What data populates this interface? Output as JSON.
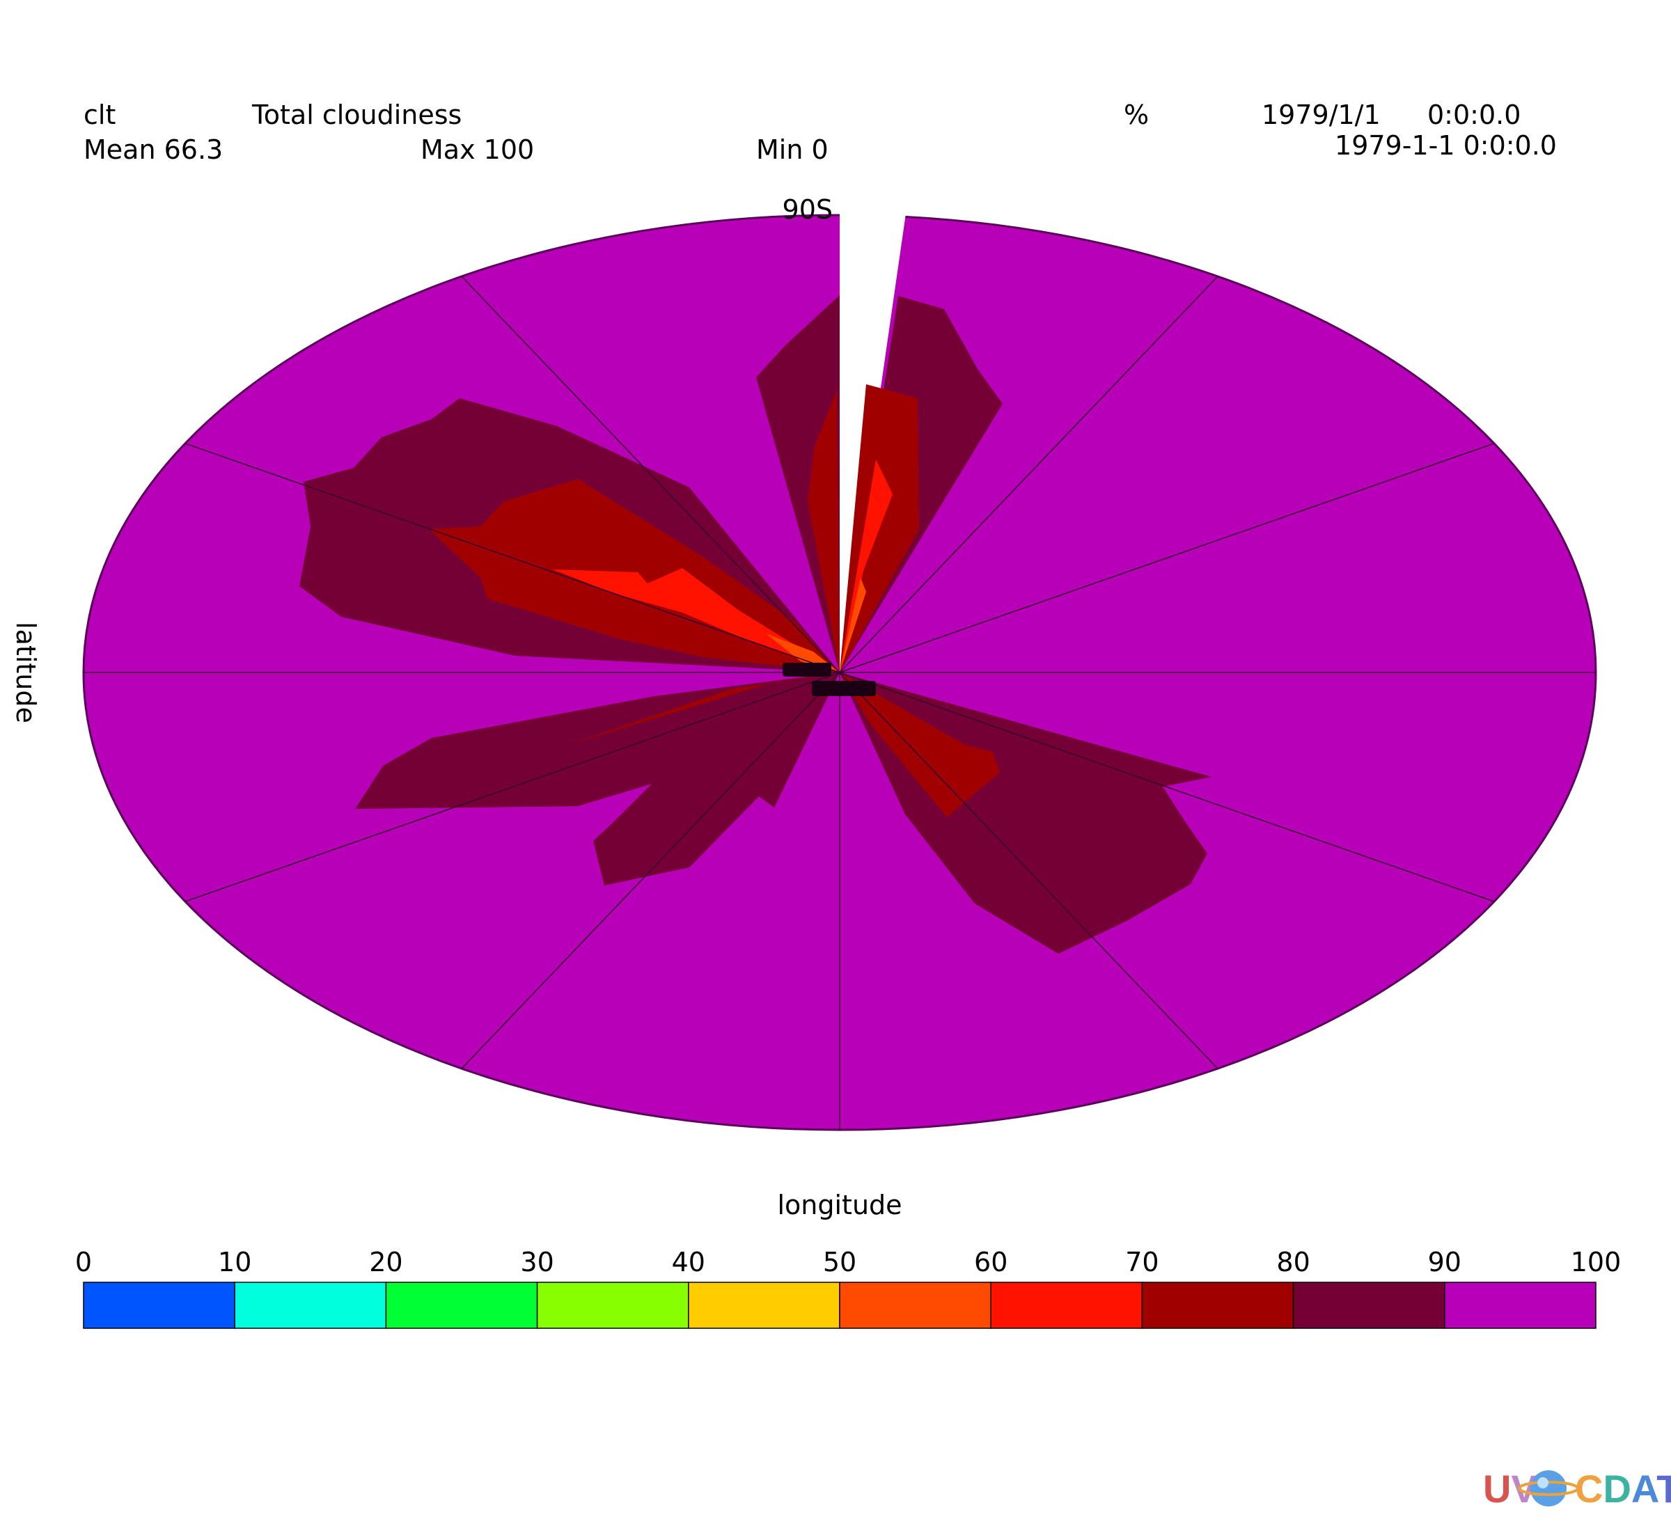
{
  "header": {
    "var_name": "clt",
    "long_name": "Total cloudiness",
    "units": "%",
    "date": "1979/1/1",
    "time": "0:0:0.0",
    "datetime": "1979-1-1 0:0:0.0",
    "mean_label": "Mean 66.3",
    "max_label": "Max 100",
    "min_label": "Min 0"
  },
  "chart_data": {
    "type": "heatmap",
    "projection": "polar",
    "variable": "clt",
    "title": "Total cloudiness",
    "units": "%",
    "xlabel": "longitude",
    "ylabel": "latitude",
    "pole_label": "90S",
    "stats": {
      "mean": 66.3,
      "max": 100,
      "min": 0
    },
    "colorbar": {
      "levels": [
        "0",
        "10",
        "20",
        "30",
        "40",
        "50",
        "60",
        "70",
        "80",
        "90",
        "100"
      ],
      "colors": [
        "#0055ff",
        "#00ffdd",
        "#00ff33",
        "#88ff00",
        "#ffcc00",
        "#ff4a00",
        "#ff1200",
        "#a00000",
        "#750035",
        "#b800b8"
      ]
    },
    "background_color": "#b800b8"
  },
  "logo": {
    "text": "UV-CDAT"
  }
}
